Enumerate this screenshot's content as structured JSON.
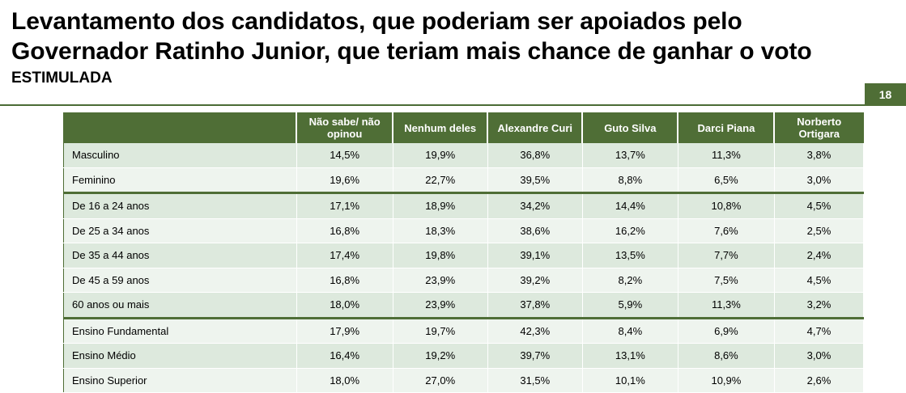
{
  "title": {
    "line1": "Levantamento dos candidatos, que poderiam ser apoiados pelo",
    "line2": "Governador Ratinho Junior, que teriam mais chance de ganhar o voto",
    "subtitle": "ESTIMULADA"
  },
  "page_number": "18",
  "colors": {
    "header_green": "#4f6e36",
    "row_light": "#eef4ee",
    "row_dark": "#dde9dd"
  },
  "table": {
    "headers": [
      "",
      "Não sabe/ não opinou",
      "Nenhum deles",
      "Alexandre Curi",
      "Guto Silva",
      "Darci Piana",
      "Norberto Ortigara"
    ],
    "rows": [
      [
        "Masculino",
        "14,5%",
        "19,9%",
        "36,8%",
        "13,7%",
        "11,3%",
        "3,8%"
      ],
      [
        "Feminino",
        "19,6%",
        "22,7%",
        "39,5%",
        "8,8%",
        "6,5%",
        "3,0%"
      ],
      [
        "De 16 a 24 anos",
        "17,1%",
        "18,9%",
        "34,2%",
        "14,4%",
        "10,8%",
        "4,5%"
      ],
      [
        "De 25 a 34 anos",
        "16,8%",
        "18,3%",
        "38,6%",
        "16,2%",
        "7,6%",
        "2,5%"
      ],
      [
        "De 35 a 44 anos",
        "17,4%",
        "19,8%",
        "39,1%",
        "13,5%",
        "7,7%",
        "2,4%"
      ],
      [
        "De 45 a 59 anos",
        "16,8%",
        "23,9%",
        "39,2%",
        "8,2%",
        "7,5%",
        "4,5%"
      ],
      [
        "60 anos ou mais",
        "18,0%",
        "23,9%",
        "37,8%",
        "5,9%",
        "11,3%",
        "3,2%"
      ],
      [
        "Ensino Fundamental",
        "17,9%",
        "19,7%",
        "42,3%",
        "8,4%",
        "6,9%",
        "4,7%"
      ],
      [
        "Ensino Médio",
        "16,4%",
        "19,2%",
        "39,7%",
        "13,1%",
        "8,6%",
        "3,0%"
      ],
      [
        "Ensino Superior",
        "18,0%",
        "27,0%",
        "31,5%",
        "10,1%",
        "10,9%",
        "2,6%"
      ]
    ]
  }
}
